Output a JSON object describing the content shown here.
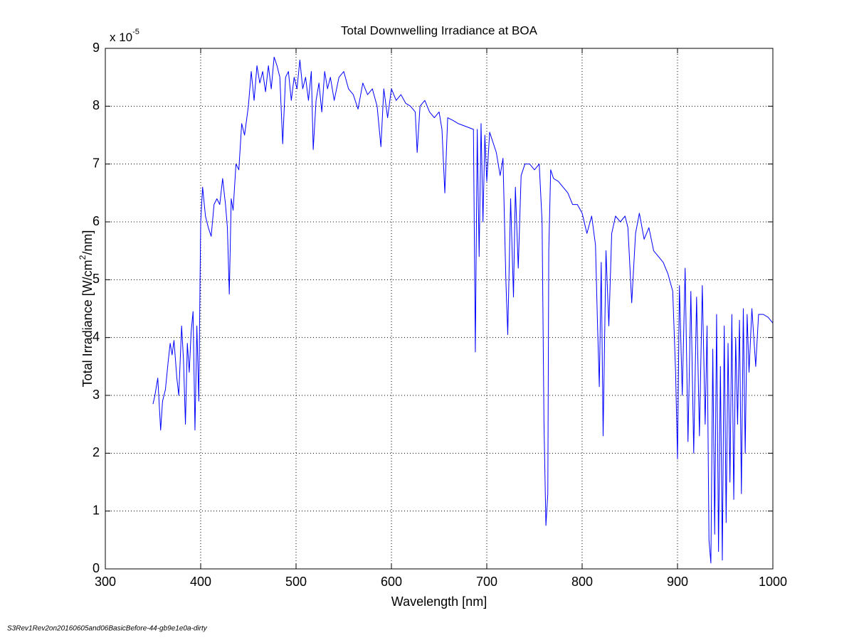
{
  "chart_data": {
    "type": "line",
    "title": "Total Downwelling Irradiance at BOA",
    "xlabel": "Wavelength [nm]",
    "ylabel": [
      "Total Irradiance [W/cm",
      "2",
      "/nm]"
    ],
    "y_multiplier": [
      "x 10",
      "-5"
    ],
    "footer": "S3Rev1Rev2on20160605and06BasicBefore-44-gb9e1e0a-dirty",
    "grid": true,
    "xlim": [
      300,
      1000
    ],
    "xticks": [
      300,
      400,
      500,
      600,
      700,
      800,
      900,
      1000
    ],
    "ylim": [
      0,
      9
    ],
    "yticks": [
      0,
      1,
      2,
      3,
      4,
      5,
      6,
      7,
      8,
      9
    ],
    "series": [
      {
        "color": "#0000ff",
        "x": [
          350,
          352,
          355,
          358,
          360,
          363,
          366,
          368,
          370,
          372,
          375,
          377,
          380,
          382,
          384,
          386,
          388,
          390,
          392,
          394,
          396,
          398,
          400,
          402,
          405,
          408,
          411,
          414,
          417,
          420,
          423,
          426,
          428,
          430,
          432,
          434,
          437,
          440,
          443,
          446,
          450,
          453,
          456,
          459,
          462,
          465,
          468,
          471,
          474,
          477,
          480,
          483,
          486,
          489,
          492,
          495,
          498,
          501,
          504,
          507,
          510,
          513,
          516,
          518,
          521,
          524,
          527,
          530,
          533,
          536,
          540,
          545,
          550,
          555,
          560,
          565,
          570,
          575,
          580,
          585,
          589,
          592,
          596,
          600,
          605,
          610,
          615,
          620,
          625,
          627,
          630,
          635,
          640,
          645,
          650,
          653,
          656,
          659,
          665,
          670,
          686,
          688,
          690,
          692,
          694,
          696,
          698,
          700,
          703,
          706,
          710,
          714,
          717,
          720,
          722,
          725,
          728,
          730,
          733,
          736,
          740,
          745,
          750,
          755,
          758,
          760,
          762,
          764,
          765,
          767,
          770,
          775,
          780,
          785,
          790,
          795,
          800,
          805,
          810,
          814,
          816,
          818,
          820,
          822,
          825,
          828,
          831,
          835,
          840,
          845,
          848,
          852,
          856,
          860,
          865,
          870,
          875,
          880,
          885,
          890,
          895,
          898,
          900,
          902,
          905,
          908,
          911,
          914,
          917,
          920,
          923,
          926,
          929,
          931,
          933,
          935,
          937,
          939,
          941,
          943,
          945,
          947,
          949,
          951,
          953,
          955,
          957,
          959,
          961,
          963,
          965,
          967,
          969,
          971,
          973,
          975,
          978,
          982,
          985,
          990,
          995,
          1000
        ],
        "values": [
          2.85,
          3.0,
          3.3,
          2.4,
          2.9,
          3.1,
          3.6,
          3.9,
          3.7,
          3.95,
          3.3,
          3.0,
          4.2,
          3.6,
          2.5,
          3.9,
          3.4,
          4.1,
          4.45,
          2.4,
          4.2,
          2.9,
          6.0,
          6.6,
          6.1,
          5.9,
          5.75,
          6.3,
          6.4,
          6.3,
          6.75,
          6.3,
          5.9,
          4.75,
          6.4,
          6.2,
          7.0,
          6.9,
          7.7,
          7.5,
          8.0,
          8.6,
          8.1,
          8.7,
          8.4,
          8.6,
          8.25,
          8.7,
          8.3,
          8.85,
          8.7,
          8.5,
          7.35,
          8.5,
          8.6,
          8.1,
          8.5,
          8.3,
          8.8,
          8.3,
          8.5,
          8.1,
          8.6,
          7.25,
          8.1,
          8.4,
          7.9,
          8.6,
          8.3,
          8.5,
          8.1,
          8.5,
          8.6,
          8.3,
          8.2,
          7.95,
          8.4,
          8.2,
          8.3,
          8.0,
          7.3,
          8.3,
          7.8,
          8.3,
          8.1,
          8.2,
          8.05,
          8.0,
          7.9,
          7.2,
          8.0,
          8.1,
          7.9,
          7.8,
          7.9,
          7.6,
          6.5,
          7.8,
          7.75,
          7.7,
          7.6,
          3.75,
          7.6,
          5.4,
          7.7,
          6.0,
          7.5,
          6.7,
          7.55,
          7.4,
          7.2,
          6.8,
          7.1,
          5.0,
          4.05,
          6.4,
          4.7,
          6.6,
          5.2,
          6.8,
          7.0,
          7.0,
          6.9,
          7.0,
          6.0,
          2.5,
          0.75,
          1.3,
          5.5,
          6.9,
          6.75,
          6.7,
          6.6,
          6.5,
          6.3,
          6.3,
          6.15,
          5.8,
          6.1,
          5.6,
          4.3,
          3.15,
          5.3,
          2.3,
          5.5,
          4.2,
          5.8,
          6.1,
          6.0,
          6.1,
          5.9,
          4.6,
          5.8,
          6.15,
          5.7,
          5.9,
          5.5,
          5.4,
          5.3,
          5.1,
          4.8,
          3.4,
          1.9,
          4.9,
          3.0,
          5.2,
          2.2,
          4.8,
          2.0,
          4.7,
          2.3,
          4.9,
          2.5,
          4.2,
          0.5,
          0.1,
          3.8,
          0.6,
          4.4,
          0.3,
          3.5,
          0.15,
          4.2,
          0.8,
          3.9,
          1.5,
          4.4,
          1.2,
          4.0,
          2.5,
          4.3,
          1.3,
          4.5,
          2.0,
          4.4,
          3.4,
          4.5,
          3.5,
          4.4,
          4.4,
          4.35,
          4.25
        ]
      }
    ]
  }
}
